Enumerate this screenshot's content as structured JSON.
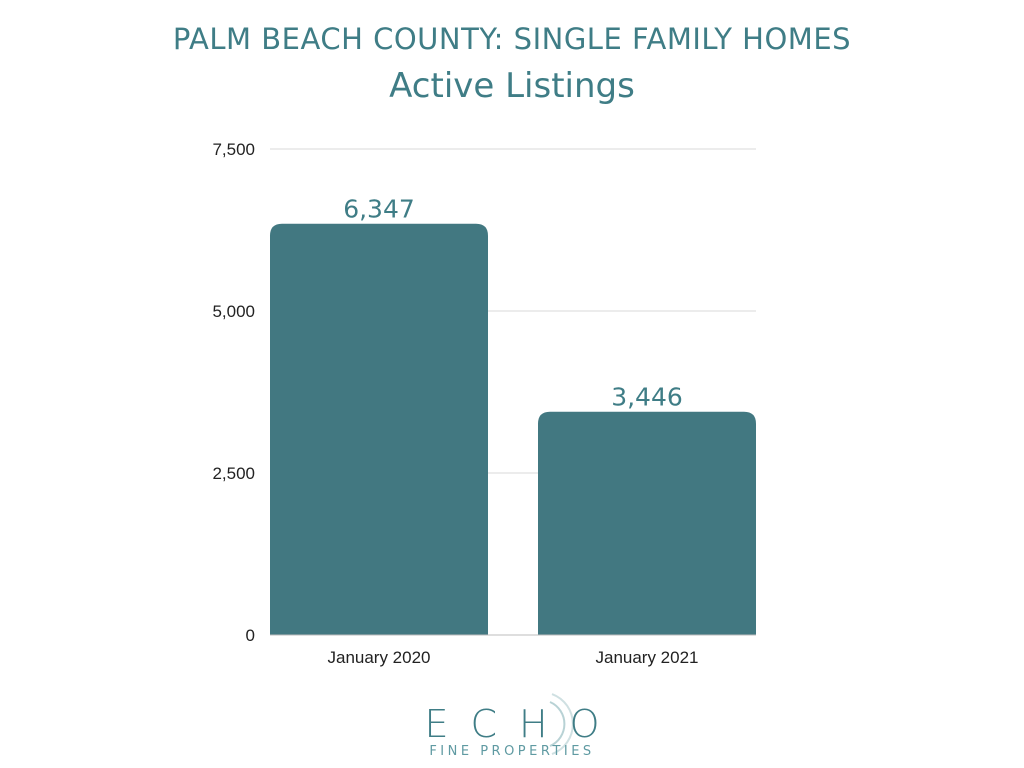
{
  "chart_data": {
    "type": "bar",
    "title": "PALM BEACH COUNTY: SINGLE FAMILY HOMES",
    "subtitle": "Active Listings",
    "categories": [
      "January 2020",
      "January 2021"
    ],
    "values": [
      6347,
      3446
    ],
    "data_labels": [
      "6,347",
      "3,446"
    ],
    "ylim": [
      0,
      7500
    ],
    "yticks": [
      0,
      2500,
      5000,
      7500
    ],
    "ytick_labels": [
      "0",
      "2,500",
      "5,000",
      "7,500"
    ],
    "xlabel": "",
    "ylabel": "",
    "grid": true,
    "legend": "none",
    "bar_color": "#427881",
    "label_color": "#3f7d86"
  },
  "branding": {
    "name": "ECHO",
    "tagline": "FINE PROPERTIES",
    "color": "#3f7d86"
  }
}
